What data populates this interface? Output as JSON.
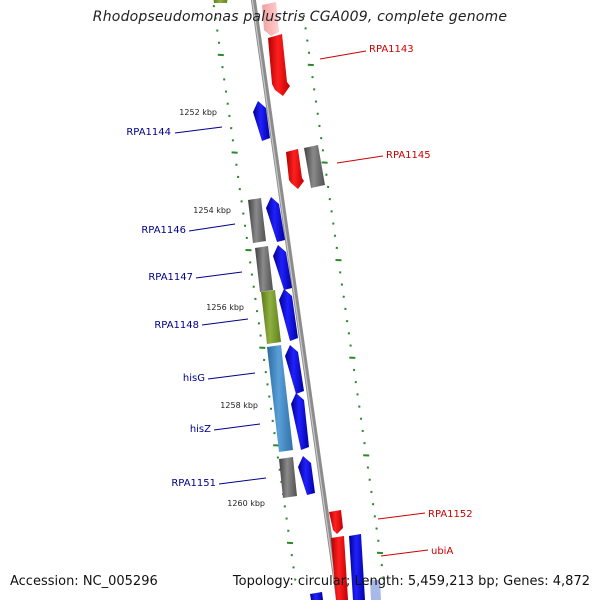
{
  "title": "Rhodopseudomonas palustris CGA009, complete genome",
  "footer": {
    "accession": "Accession: NC_005296",
    "topology": "Topology: circular; Length: 5,459,213 bp; Genes: 4,872"
  },
  "scale_labels": [
    "1252 kbp",
    "1254 kbp",
    "1256 kbp",
    "1258 kbp",
    "1260 kbp"
  ],
  "genes": [
    {
      "id": "RPA1143",
      "label": "RPA1143",
      "side": "right",
      "strand": "reverse",
      "track": "outer",
      "color": "#ff0000"
    },
    {
      "id": "RPA1144",
      "label": "RPA1144",
      "side": "left",
      "strand": "forward",
      "track": "outer",
      "color": "#0000ff"
    },
    {
      "id": "RPA1145",
      "label": "RPA1145",
      "side": "right",
      "strand": "reverse",
      "track": "outer",
      "color": "#ff0000"
    },
    {
      "id": "RPA1146",
      "label": "RPA1146",
      "side": "left",
      "strand": "forward",
      "track": "outer",
      "color": "#0000ff"
    },
    {
      "id": "RPA1147",
      "label": "RPA1147",
      "side": "left",
      "strand": "forward",
      "track": "outer",
      "color": "#0000ff"
    },
    {
      "id": "RPA1148",
      "label": "RPA1148",
      "side": "left",
      "strand": "forward",
      "track": "outer",
      "color": "#0000ff"
    },
    {
      "id": "hisG",
      "label": "hisG",
      "side": "left",
      "strand": "forward",
      "track": "outer",
      "color": "#0000ff"
    },
    {
      "id": "hisZ",
      "label": "hisZ",
      "side": "left",
      "strand": "forward",
      "track": "outer",
      "color": "#0000ff"
    },
    {
      "id": "RPA1151",
      "label": "RPA1151",
      "side": "left",
      "strand": "forward",
      "track": "outer",
      "color": "#0000ff"
    },
    {
      "id": "RPA1152",
      "label": "RPA1152",
      "side": "right",
      "strand": "reverse",
      "track": "outer",
      "color": "#ff0000"
    },
    {
      "id": "ubiA",
      "label": "ubiA",
      "side": "right",
      "strand": "forward",
      "track": "outer",
      "color": "#0000ff"
    }
  ],
  "colors": {
    "forward_gene": "#0000ff",
    "reverse_gene": "#ff0000",
    "cog_gray": "#707070",
    "cog_green": "#7a9a30",
    "cog_lightblue": "#4a90c8",
    "backbone": "#9a9a9a",
    "tick": "#2a8a2a",
    "label_forward": "#00008b",
    "label_reverse": "#cc0000"
  }
}
